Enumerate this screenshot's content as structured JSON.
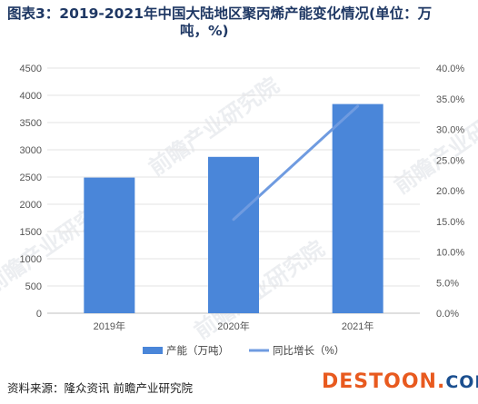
{
  "title_line1": "图表3：2019-2021年中国大陆地区聚丙烯产能变化情况(单位：万",
  "title_line2": "吨，%)",
  "source": "资料来源：隆众资讯 前瞻产业研究院",
  "watermark": "前瞻产业研究院",
  "logo": {
    "main": "DESTOON",
    "dot": ".",
    "dom": "COM"
  },
  "colors": {
    "bar": "#4a86d9",
    "line": "#6f9be0",
    "grid": "#e3e3e3"
  },
  "chart_data": {
    "type": "bar",
    "categories": [
      "2019年",
      "2020年",
      "2021年"
    ],
    "y_ticks": [
      "0",
      "500",
      "1000",
      "1500",
      "2000",
      "2500",
      "3000",
      "3500",
      "4000",
      "4500"
    ],
    "y2_ticks": [
      "0.0%",
      "5.0%",
      "10.0%",
      "15.0%",
      "20.0%",
      "25.0%",
      "30.0%",
      "35.0%",
      "40.0%"
    ],
    "ylim": [
      0,
      4500
    ],
    "y2lim": [
      0,
      40
    ],
    "series": [
      {
        "name": "产能（万吨）",
        "type": "bar",
        "axis": "left",
        "values": [
          2490,
          2870,
          3840
        ]
      },
      {
        "name": "同比增长（%）",
        "type": "line",
        "axis": "right",
        "values": [
          null,
          15.3,
          33.8
        ]
      }
    ],
    "legend": "bottom",
    "grid": true
  }
}
